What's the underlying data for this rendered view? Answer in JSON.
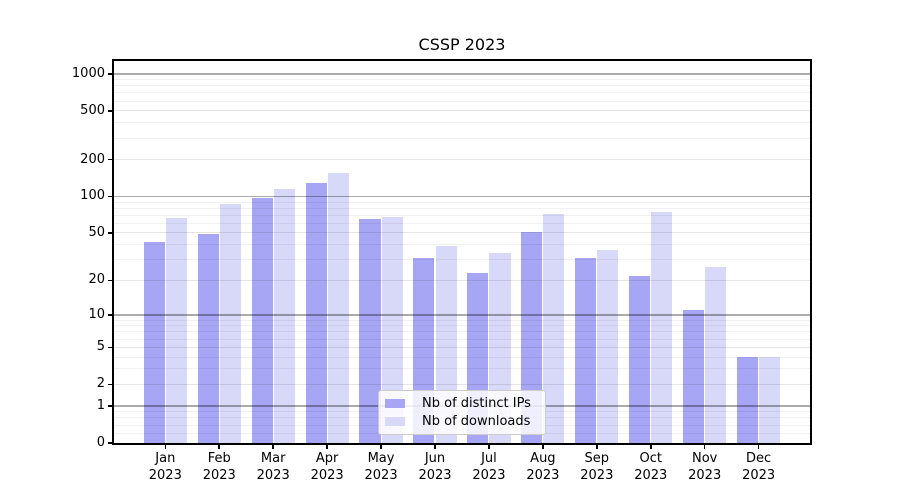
{
  "title": "CSSP 2023",
  "chart_data": {
    "type": "bar",
    "title": "CSSP 2023",
    "categories": [
      "Jan 2023",
      "Feb 2023",
      "Mar 2023",
      "Apr 2023",
      "May 2023",
      "Jun 2023",
      "Jul 2023",
      "Aug 2023",
      "Sep 2023",
      "Oct 2023",
      "Nov 2023",
      "Dec 2023"
    ],
    "series": [
      {
        "name": "Nb of distinct IPs",
        "color": "#a6a6f5",
        "values": [
          42,
          49,
          97,
          128,
          65,
          31,
          23,
          51,
          31,
          22,
          11,
          4
        ]
      },
      {
        "name": "Nb of downloads",
        "color": "#d8d8f8",
        "values": [
          66,
          87,
          116,
          156,
          68,
          39,
          34,
          72,
          36,
          75,
          26,
          4
        ]
      }
    ],
    "xlabel": "",
    "ylabel": "",
    "y_scale": "symlog (position proportional to log10(1+value))",
    "y_ticks": [
      0,
      1,
      2,
      5,
      10,
      20,
      50,
      100,
      200,
      500,
      1000
    ],
    "y_tick_labels": [
      "0",
      "1",
      "2",
      "5",
      "10",
      "20",
      "50",
      "100",
      "200",
      "500",
      "1000"
    ],
    "ylim": [
      0,
      1300
    ],
    "grid": "horizontal major + minor",
    "legend_position": "lower center inside plot"
  },
  "colors": {
    "distinct_ips_bar": "#a6a6f5",
    "downloads_bar": "#d8d8f8",
    "axis": "#000000",
    "major_grid": "#b0b0b0",
    "minor_grid": "#ececec",
    "legend_border": "#cccccc"
  }
}
